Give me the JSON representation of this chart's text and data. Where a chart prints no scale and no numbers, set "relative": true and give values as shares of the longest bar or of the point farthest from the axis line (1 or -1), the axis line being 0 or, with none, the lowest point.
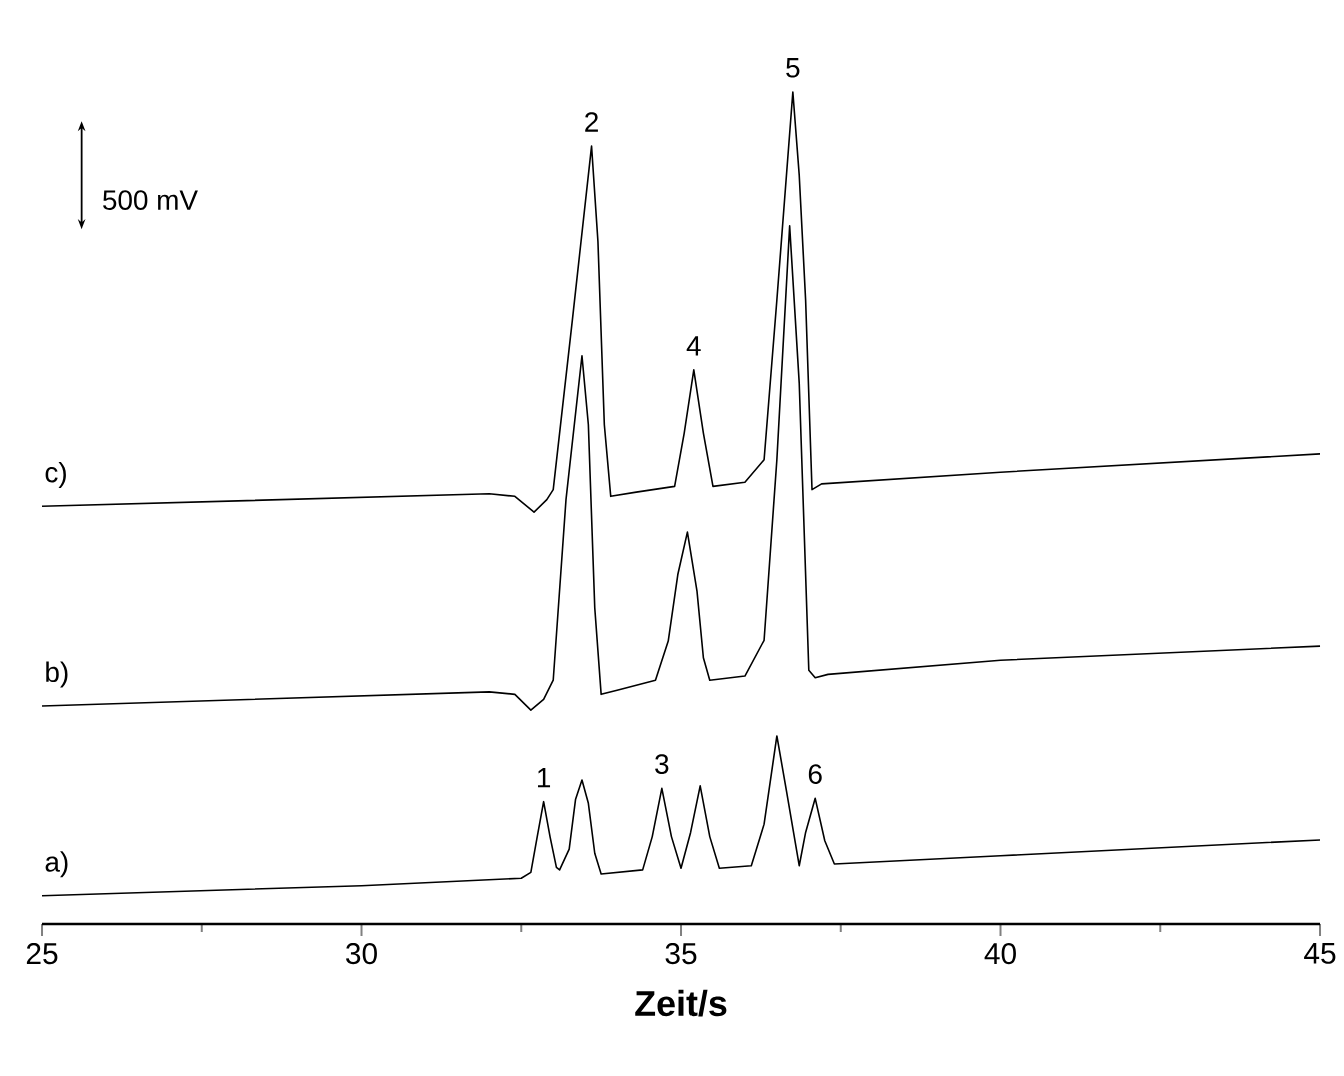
{
  "chart_data": {
    "type": "line",
    "relative": true,
    "xlabel": "Zeit/s",
    "xlim": [
      25,
      45
    ],
    "xticks": [
      25,
      30,
      35,
      40,
      45
    ],
    "tick_labels": "x",
    "grid": false,
    "marker": "none",
    "line_style": "solid",
    "annotations": [
      "500 mV",
      {
        "text": "1",
        "x": 32.85,
        "y": 0.147
      },
      {
        "text": "2",
        "x": 33.6,
        "y": 0.935
      },
      {
        "text": "3",
        "x": 34.7,
        "y": 0.163
      },
      {
        "text": "4",
        "x": 35.2,
        "y": 0.666
      },
      {
        "text": "5",
        "x": 36.75,
        "y": 1.0
      },
      {
        "text": "6",
        "x": 37.1,
        "y": 0.151
      }
    ],
    "series": [
      {
        "name": "a)",
        "color": "#000000",
        "x": [
          25,
          30,
          32.5,
          32.65,
          32.75,
          32.85,
          32.95,
          33.05,
          33.1,
          33.25,
          33.35,
          33.45,
          33.55,
          33.65,
          33.75,
          34.4,
          34.55,
          34.7,
          34.85,
          35.0,
          35.15,
          35.3,
          35.45,
          35.6,
          36.1,
          36.3,
          36.5,
          36.65,
          36.85,
          36.95,
          37.1,
          37.25,
          37.4,
          40,
          45
        ],
        "values": [
          0.034,
          0.046,
          0.055,
          0.062,
          0.105,
          0.147,
          0.105,
          0.068,
          0.065,
          0.09,
          0.15,
          0.173,
          0.145,
          0.085,
          0.06,
          0.065,
          0.105,
          0.163,
          0.105,
          0.067,
          0.11,
          0.166,
          0.105,
          0.067,
          0.07,
          0.12,
          0.226,
          0.16,
          0.07,
          0.11,
          0.151,
          0.1,
          0.072,
          0.082,
          0.101
        ]
      },
      {
        "name": "b)",
        "color": "#000000",
        "x": [
          25,
          32,
          32.4,
          32.65,
          32.85,
          33.0,
          33.2,
          33.45,
          33.55,
          33.65,
          33.75,
          34.0,
          34.6,
          34.8,
          34.95,
          35.1,
          35.25,
          35.35,
          35.45,
          36.0,
          36.3,
          36.5,
          36.7,
          36.85,
          37.0,
          37.1,
          37.3,
          40,
          45
        ],
        "values": [
          0.262,
          0.279,
          0.276,
          0.257,
          0.27,
          0.293,
          0.51,
          0.683,
          0.6,
          0.38,
          0.276,
          0.281,
          0.293,
          0.34,
          0.42,
          0.471,
          0.4,
          0.32,
          0.293,
          0.298,
          0.341,
          0.558,
          0.839,
          0.65,
          0.305,
          0.296,
          0.3,
          0.317,
          0.334
        ]
      },
      {
        "name": "c)",
        "color": "#000000",
        "x": [
          25,
          32,
          32.4,
          32.7,
          32.9,
          33.0,
          33.3,
          33.6,
          33.7,
          33.8,
          33.9,
          34.3,
          34.9,
          35.05,
          35.2,
          35.35,
          35.5,
          36.0,
          36.3,
          36.5,
          36.75,
          36.85,
          36.95,
          37.05,
          37.2,
          40,
          45
        ],
        "values": [
          0.502,
          0.517,
          0.514,
          0.495,
          0.51,
          0.522,
          0.726,
          0.935,
          0.82,
          0.6,
          0.514,
          0.519,
          0.526,
          0.59,
          0.666,
          0.59,
          0.526,
          0.531,
          0.558,
          0.75,
          1.0,
          0.9,
          0.75,
          0.522,
          0.529,
          0.543,
          0.565
        ]
      }
    ]
  }
}
